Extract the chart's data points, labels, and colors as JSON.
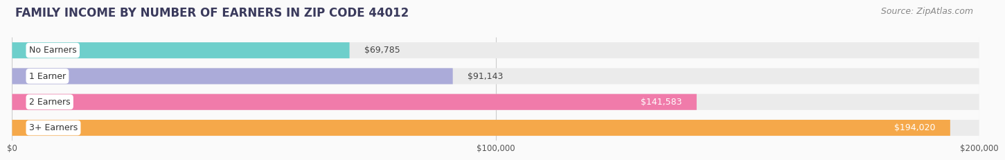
{
  "title": "FAMILY INCOME BY NUMBER OF EARNERS IN ZIP CODE 44012",
  "source": "Source: ZipAtlas.com",
  "categories": [
    "No Earners",
    "1 Earner",
    "2 Earners",
    "3+ Earners"
  ],
  "values": [
    69785,
    91143,
    141583,
    194020
  ],
  "bar_colors": [
    "#6ECFCB",
    "#ABABD9",
    "#F07BAA",
    "#F5A84A"
  ],
  "bar_bg_color": "#EBEBEB",
  "xlim": [
    0,
    200000
  ],
  "xticks": [
    0,
    100000,
    200000
  ],
  "xtick_labels": [
    "$0",
    "$100,000",
    "$200,000"
  ],
  "title_fontsize": 12,
  "source_fontsize": 9,
  "label_fontsize": 9,
  "value_fontsize": 9,
  "background_color": "#FAFAFA",
  "bar_height": 0.62,
  "rounding_size": 0.3
}
